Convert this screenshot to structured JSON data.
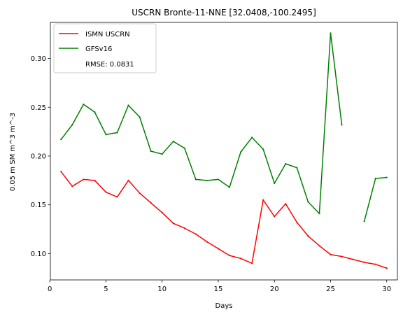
{
  "chart_data": {
    "type": "line",
    "title": "USCRN Bronte-11-NNE [32.0408,-100.2495]",
    "xlabel": "Days",
    "ylabel": "0.05 m SM m^3 m^-3",
    "xlim": [
      0.05,
      30.95
    ],
    "ylim": [
      0.073,
      0.337
    ],
    "xticks": [
      0,
      5,
      10,
      15,
      20,
      25,
      30
    ],
    "xtick_labels": [
      "0",
      "5",
      "10",
      "15",
      "20",
      "25",
      "30"
    ],
    "yticks": [
      0.1,
      0.15,
      0.2,
      0.25,
      0.3
    ],
    "ytick_labels": [
      "0.10",
      "0.15",
      "0.20",
      "0.25",
      "0.30"
    ],
    "grid": false,
    "legend_position": "top-left",
    "rmse_text": "RMSE: 0.0831",
    "x": [
      1,
      2,
      3,
      4,
      5,
      6,
      7,
      8,
      9,
      10,
      11,
      12,
      13,
      14,
      15,
      16,
      17,
      18,
      19,
      20,
      21,
      22,
      23,
      24,
      25,
      26,
      27,
      28,
      29,
      30
    ],
    "series": [
      {
        "name": "ISMN USCRN",
        "color": "#ff0000",
        "values": [
          0.184,
          0.169,
          0.176,
          0.175,
          0.163,
          0.158,
          0.175,
          0.162,
          0.152,
          0.142,
          0.131,
          0.126,
          0.12,
          0.112,
          0.105,
          0.098,
          0.095,
          0.09,
          0.155,
          0.138,
          0.151,
          0.132,
          0.118,
          0.108,
          0.099,
          0.097,
          0.094,
          0.091,
          0.089,
          0.085
        ]
      },
      {
        "name": "GFSv16",
        "color": "#008000",
        "values": [
          0.217,
          0.232,
          0.253,
          0.245,
          0.222,
          0.224,
          0.252,
          0.24,
          0.205,
          0.202,
          0.215,
          0.208,
          0.176,
          0.175,
          0.176,
          0.168,
          0.204,
          0.219,
          0.207,
          0.172,
          0.192,
          0.188,
          0.153,
          0.141,
          0.326,
          0.232,
          null,
          0.133,
          0.177,
          0.178
        ]
      }
    ]
  }
}
